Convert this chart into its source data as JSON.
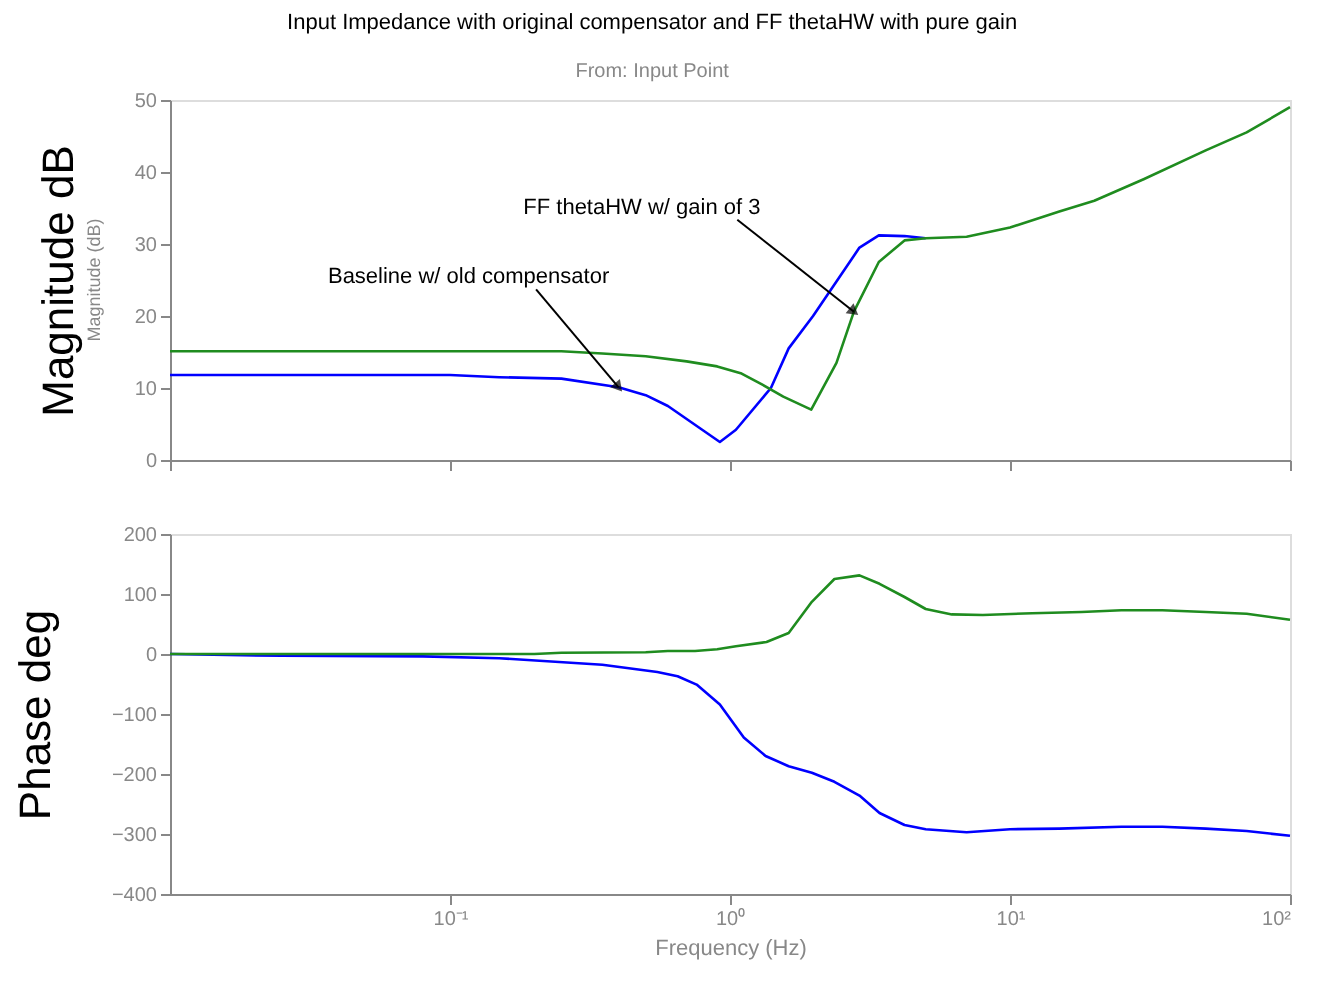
{
  "chart_data": [
    {
      "type": "line",
      "title": "Input Impedance with original compensator and FF thetaHW with pure gain",
      "subtitle": "From: Input Point",
      "ylabel": "Magnitude dB",
      "log": "x",
      "tick_labels": "y",
      "xlim": [
        0.01,
        100
      ],
      "ylim": [
        0,
        50
      ],
      "yticks": [
        0,
        10,
        20,
        30,
        40,
        50
      ],
      "grid": false,
      "annotations": [
        "Magnitude (dB)",
        {
          "text": "Baseline w/ old compensator",
          "x": 0.4,
          "y": 10.1
        },
        {
          "text": "FF thetaHW w/ gain of 3",
          "x": 2.77,
          "y": 20.6
        }
      ],
      "series": [
        {
          "color": "#0000ff",
          "x": [
            0.01,
            0.1,
            0.15,
            0.25,
            0.4,
            0.5,
            0.6,
            0.92,
            1.05,
            1.4,
            1.62,
            1.98,
            2.9,
            3.4,
            4.2,
            5
          ],
          "values": [
            11.8,
            11.8,
            11.5,
            11.3,
            10.1,
            9,
            7.5,
            2.5,
            4.2,
            10,
            15.5,
            20,
            29.5,
            31.2,
            31.1,
            30.8
          ]
        },
        {
          "color": "#1f8c1f",
          "x": [
            0.01,
            0.25,
            0.35,
            0.5,
            0.7,
            0.9,
            1.1,
            1.3,
            1.55,
            1.95,
            2.4,
            2.77,
            3.4,
            4.2,
            5,
            7,
            10,
            15,
            20,
            30,
            50,
            70,
            100
          ],
          "values": [
            15.1,
            15.1,
            14.8,
            14.4,
            13.7,
            13,
            12,
            10.5,
            8.8,
            7,
            13.5,
            20.6,
            27.5,
            30.5,
            30.8,
            31,
            32.3,
            34.5,
            36,
            39,
            43,
            45.5,
            49
          ]
        }
      ]
    },
    {
      "type": "line",
      "ylabel": "Phase deg",
      "xlabel": "Frequency (Hz)",
      "log": "x",
      "xlim": [
        0.01,
        100
      ],
      "xticks": [
        {
          "value": 0.1,
          "label": "10⁻¹"
        },
        {
          "value": 1,
          "label": "10⁰"
        },
        {
          "value": 10,
          "label": "10¹"
        },
        {
          "value": 100,
          "label": "10²"
        }
      ],
      "ylim": [
        -400,
        200
      ],
      "yticks": [
        -400,
        -300,
        -200,
        -100,
        0,
        100,
        200
      ],
      "grid": false,
      "series": [
        {
          "color": "#0000ff",
          "x": [
            0.01,
            0.025,
            0.08,
            0.15,
            0.35,
            0.55,
            0.65,
            0.76,
            0.92,
            1.12,
            1.34,
            1.62,
            1.96,
            2.36,
            2.9,
            3.42,
            4.2,
            5,
            7,
            10,
            15,
            25,
            35,
            50,
            70,
            100
          ],
          "values": [
            0,
            -3,
            -4,
            -7,
            -18,
            -30,
            -37,
            -51,
            -84,
            -139,
            -170,
            -187,
            -198,
            -213,
            -236,
            -265,
            -285,
            -292,
            -297,
            -292,
            -291,
            -288,
            -288,
            -291,
            -295,
            -303
          ]
        },
        {
          "color": "#1f8c1f",
          "x": [
            0.01,
            0.2,
            0.25,
            0.5,
            0.6,
            0.75,
            0.9,
            1.05,
            1.35,
            1.62,
            1.96,
            2.36,
            2.9,
            3.42,
            4.2,
            5,
            6.2,
            8,
            12,
            18,
            25,
            35,
            50,
            70,
            100
          ],
          "values": [
            0,
            0,
            2,
            3,
            5,
            5,
            8,
            13,
            20,
            35,
            87,
            125,
            131,
            117,
            95,
            75,
            66,
            65,
            68,
            70,
            73,
            73,
            70,
            67,
            57
          ]
        }
      ]
    }
  ]
}
